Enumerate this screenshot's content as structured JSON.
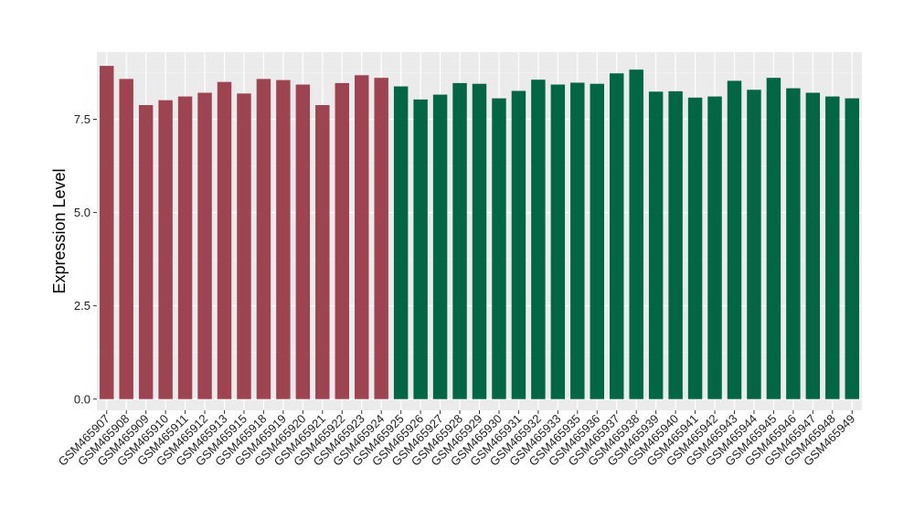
{
  "chart_data": {
    "type": "bar",
    "title": "",
    "xlabel": "",
    "ylabel": "Expression Level",
    "ylim": [
      -0.3,
      9.3
    ],
    "yticks": [
      "0.0",
      "2.5",
      "5.0",
      "7.5"
    ],
    "ytick_values": [
      0,
      2.5,
      5.0,
      7.5
    ],
    "grid": true,
    "background_color": "#EBEBEB",
    "categories": [
      "GSM465907",
      "GSM465908",
      "GSM465909",
      "GSM465910",
      "GSM465911",
      "GSM465912",
      "GSM465913",
      "GSM465915",
      "GSM465918",
      "GSM465919",
      "GSM465920",
      "GSM465921",
      "GSM465922",
      "GSM465923",
      "GSM465924",
      "GSM465925",
      "GSM465926",
      "GSM465927",
      "GSM465928",
      "GSM465929",
      "GSM465930",
      "GSM465931",
      "GSM465932",
      "GSM465933",
      "GSM465935",
      "GSM465936",
      "GSM465937",
      "GSM465938",
      "GSM465939",
      "GSM465940",
      "GSM465941",
      "GSM465942",
      "GSM465943",
      "GSM465944",
      "GSM465945",
      "GSM465946",
      "GSM465947",
      "GSM465948",
      "GSM465949"
    ],
    "values": [
      8.93,
      8.58,
      7.88,
      8.01,
      8.11,
      8.21,
      8.5,
      8.19,
      8.58,
      8.55,
      8.43,
      7.88,
      8.47,
      8.68,
      8.61,
      8.38,
      8.03,
      8.16,
      8.47,
      8.45,
      8.06,
      8.26,
      8.56,
      8.43,
      8.48,
      8.45,
      8.73,
      8.83,
      8.24,
      8.25,
      8.08,
      8.11,
      8.53,
      8.29,
      8.61,
      8.33,
      8.21,
      8.11,
      8.06
    ],
    "bar_colors": [
      "#9E4450",
      "#9E4450",
      "#9E4450",
      "#9E4450",
      "#9E4450",
      "#9E4450",
      "#9E4450",
      "#9E4450",
      "#9E4450",
      "#9E4450",
      "#9E4450",
      "#9E4450",
      "#9E4450",
      "#9E4450",
      "#9E4450",
      "#006643",
      "#006643",
      "#006643",
      "#006643",
      "#006643",
      "#006643",
      "#006643",
      "#006643",
      "#006643",
      "#006643",
      "#006643",
      "#006643",
      "#006643",
      "#006643",
      "#006643",
      "#006643",
      "#006643",
      "#006643",
      "#006643",
      "#006643",
      "#006643",
      "#006643",
      "#006643",
      "#006643"
    ]
  }
}
